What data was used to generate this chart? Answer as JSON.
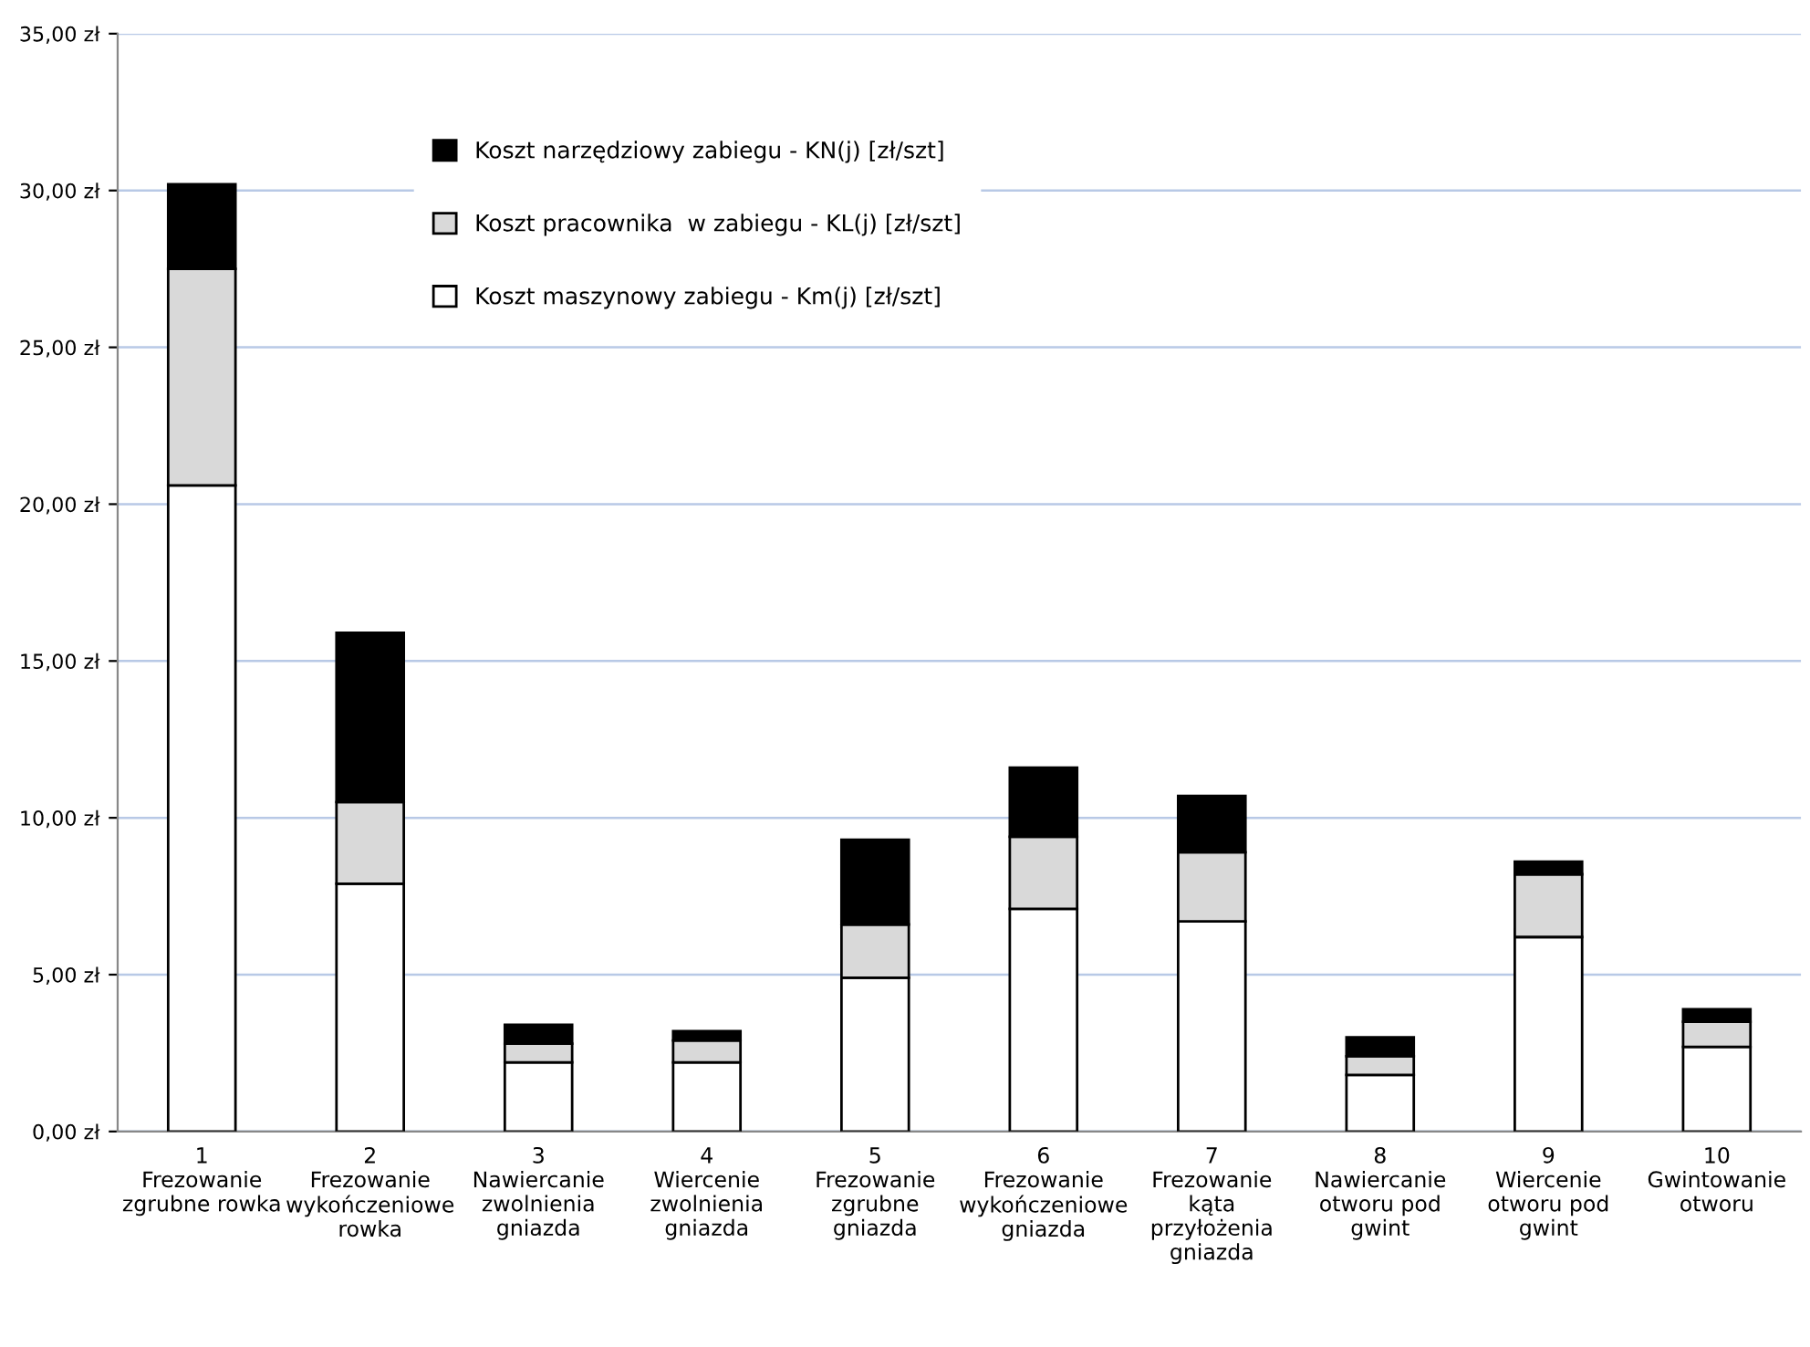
{
  "chart_data": {
    "type": "bar",
    "stacked": true,
    "categories": [
      "1\nFrezowanie\nzgrubne rowka",
      "2\nFrezowanie\nwykończeniowe\nrowka",
      "3\nNawiercanie\nzwolnienia\ngniazda",
      "4\nWiercenie\nzwolnienia\ngniazda",
      "5\nFrezowanie\nzgrubne\ngniazda",
      "6\nFrezowanie\nwykończeniowe\ngniazda",
      "7\nFrezowanie\nkąta\nprzyłożenia\ngniazda",
      "8\nNawiercanie\notworu pod\ngwint",
      "9\nWiercenie\notworu pod\ngwint",
      "10\nGwintowanie\notworu"
    ],
    "series": [
      {
        "name": "Koszt maszynowy zabiegu - Km(j) [zł/szt]",
        "color": "#ffffff",
        "values": [
          20.6,
          7.9,
          2.2,
          2.2,
          4.9,
          7.1,
          6.7,
          1.8,
          6.2,
          2.7
        ]
      },
      {
        "name": "Koszt pracownika  w zabiegu - KL(j) [zł/szt]",
        "color": "#d9d9d9",
        "values": [
          6.9,
          2.6,
          0.6,
          0.7,
          1.7,
          2.3,
          2.2,
          0.6,
          2.0,
          0.8
        ]
      },
      {
        "name": "Koszt narzędziowy zabiegu - KN(j) [zł/szt]",
        "color": "#000000",
        "values": [
          2.7,
          5.4,
          0.6,
          0.3,
          2.7,
          2.2,
          1.8,
          0.6,
          0.4,
          0.4
        ]
      }
    ],
    "ylim": [
      0,
      35
    ],
    "yticks": [
      {
        "value": 0,
        "label": "0,00 zł"
      },
      {
        "value": 5,
        "label": "5,00 zł"
      },
      {
        "value": 10,
        "label": "10,00 zł"
      },
      {
        "value": 15,
        "label": "15,00 zł"
      },
      {
        "value": 20,
        "label": "20,00 zł"
      },
      {
        "value": 25,
        "label": "25,00 zł"
      },
      {
        "value": 30,
        "label": "30,00 zł"
      },
      {
        "value": 35,
        "label": "35,00 zł"
      }
    ],
    "grid": "y",
    "legend": "top"
  }
}
